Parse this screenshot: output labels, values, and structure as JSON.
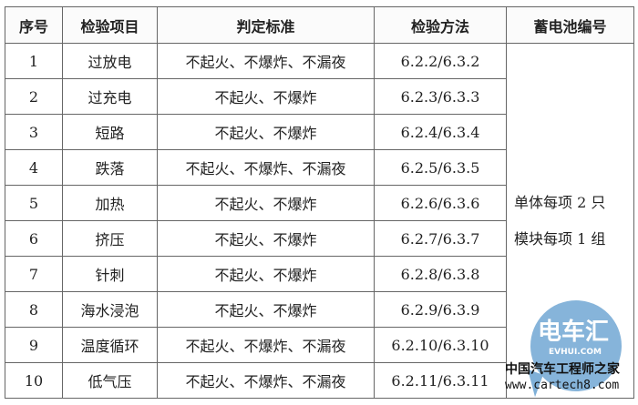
{
  "table": {
    "headers": [
      "序号",
      "检验项目",
      "判定标准",
      "检验方法",
      "蓄电池编号"
    ],
    "rows": [
      [
        "1",
        "过放电",
        "不起火、不爆炸、不漏夜",
        "6.2.2/6.3.2"
      ],
      [
        "2",
        "过充电",
        "不起火、不爆炸",
        "6.2.3/6.3.3"
      ],
      [
        "3",
        "短路",
        "不起火、不爆炸",
        "6.2.4/6.3.4"
      ],
      [
        "4",
        "跌落",
        "不起火、不爆炸、不漏夜",
        "6.2.5/6.3.5"
      ],
      [
        "5",
        "加热",
        "不起火、不爆炸",
        "6.2.6/6.3.6"
      ],
      [
        "6",
        "挤压",
        "不起火、不爆炸",
        "6.2.7/6.3.7"
      ],
      [
        "7",
        "针刺",
        "不起火、不爆炸",
        "6.2.8/6.3.8"
      ],
      [
        "8",
        "海水浸泡",
        "不起火、不爆炸",
        "6.2.9/6.3.9"
      ],
      [
        "9",
        "温度循环",
        "不起火、不爆炸、不漏夜",
        "6.2.10/6.3.10"
      ],
      [
        "10",
        "低气压",
        "不起火、不爆炸、不漏夜",
        "6.2.11/6.3.11"
      ]
    ],
    "battery_note": [
      "单体每项 2 只",
      "模块每项 1 组"
    ]
  },
  "watermark": {
    "logo": "电车汇",
    "logo_sub": "EVHUI.COM",
    "tagline": "中国汽车工程师之家",
    "url": "www.cartech8.com",
    "color": "#7fb0d8"
  }
}
